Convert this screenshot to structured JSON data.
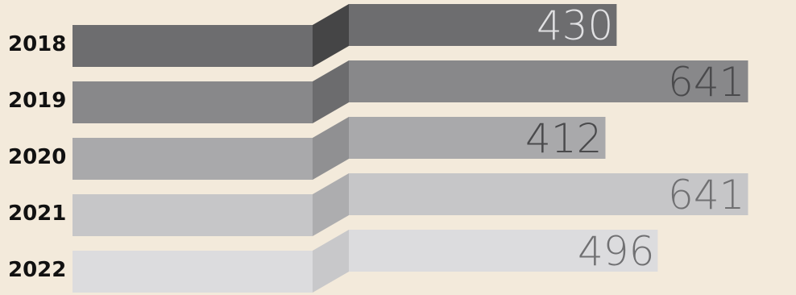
{
  "chart_data": {
    "type": "bar",
    "orientation": "horizontal",
    "categories": [
      "2018",
      "2019",
      "2020",
      "2021",
      "2022"
    ],
    "values": [
      430,
      641,
      412,
      641,
      496
    ],
    "title": "",
    "xlabel": "",
    "ylabel": "",
    "grid": false,
    "legend": "none",
    "colors": {
      "background": "#f3eadb",
      "bars": [
        "#6d6d6f",
        "#88888a",
        "#a9a9ab",
        "#c6c6c8",
        "#dcdcde"
      ],
      "bar_shadow": [
        "#454546",
        "#6c6c6e",
        "#909092",
        "#adadaf",
        "#c8c8ca"
      ],
      "value_labels": [
        "#e1e1e3",
        "#4a4a4c",
        "#4a4a4c",
        "#707072",
        "#707072"
      ],
      "category_labels": "#111111"
    }
  }
}
